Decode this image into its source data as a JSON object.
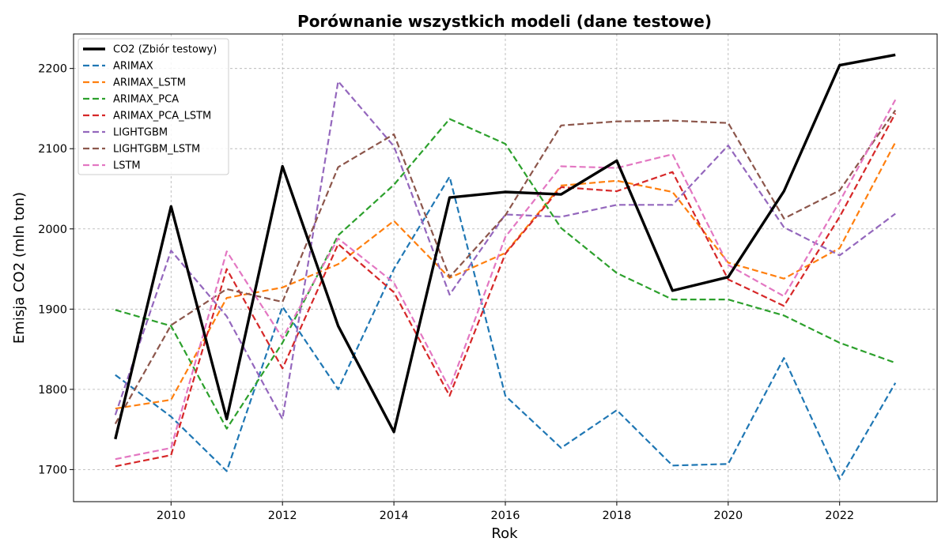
{
  "chart_data": {
    "type": "line",
    "title": "Porównanie wszystkich modeli (dane testowe)",
    "xlabel": "Rok",
    "ylabel": "Emisja CO2 (mln ton)",
    "xlim": [
      2008.25,
      2023.75
    ],
    "ylim": [
      1660,
      2243
    ],
    "xticks": [
      2010,
      2012,
      2014,
      2016,
      2018,
      2020,
      2022
    ],
    "yticks": [
      1700,
      1800,
      1900,
      2000,
      2100,
      2200
    ],
    "grid": true,
    "legend_position": "top-left",
    "x": [
      2009,
      2010,
      2011,
      2012,
      2013,
      2014,
      2015,
      2016,
      2017,
      2018,
      2019,
      2020,
      2021,
      2022,
      2023
    ],
    "series": [
      {
        "name": "CO2 (Zbiór testowy)",
        "color": "#000000",
        "style": "solid",
        "values": [
          1738,
          2028,
          1763,
          2078,
          1879,
          1747,
          2039,
          2046,
          2043,
          2085,
          1923,
          1940,
          2047,
          2204,
          2217
        ]
      },
      {
        "name": "ARIMAX",
        "color": "#1f77b4",
        "style": "dashed",
        "values": [
          1818,
          1766,
          1698,
          1903,
          1800,
          1950,
          2065,
          1792,
          1727,
          1774,
          1705,
          1707,
          1839,
          1688,
          1808
        ]
      },
      {
        "name": "ARIMAX_LSTM",
        "color": "#ff7f0e",
        "style": "dashed",
        "values": [
          1776,
          1787,
          1914,
          1927,
          1956,
          2010,
          1939,
          1970,
          2054,
          2060,
          2046,
          1958,
          1938,
          1976,
          2108
        ]
      },
      {
        "name": "ARIMAX_PCA",
        "color": "#2ca02c",
        "style": "dashed",
        "values": [
          1899,
          1879,
          1751,
          1858,
          1992,
          2055,
          2137,
          2106,
          2001,
          1945,
          1912,
          1912,
          1892,
          1858,
          1833
        ]
      },
      {
        "name": "ARIMAX_PCA_LSTM",
        "color": "#d62728",
        "style": "dashed",
        "values": [
          1704,
          1718,
          1950,
          1826,
          1981,
          1921,
          1792,
          1969,
          2052,
          2047,
          2071,
          1937,
          1904,
          2015,
          2144
        ]
      },
      {
        "name": "LIGHTGBM",
        "color": "#9467bd",
        "style": "dashed",
        "values": [
          1768,
          1973,
          1891,
          1763,
          2184,
          2103,
          1918,
          2018,
          2015,
          2030,
          2030,
          2104,
          2002,
          1967,
          2019
        ]
      },
      {
        "name": "LIGHTGBM_LSTM",
        "color": "#8c564b",
        "style": "dashed",
        "values": [
          1757,
          1880,
          1925,
          1909,
          2077,
          2118,
          1940,
          2017,
          2129,
          2134,
          2135,
          2132,
          2013,
          2048,
          2148
        ]
      },
      {
        "name": "LSTM",
        "color": "#e377c2",
        "style": "dashed",
        "values": [
          1713,
          1727,
          1972,
          1864,
          1988,
          1933,
          1801,
          1990,
          2078,
          2076,
          2093,
          1955,
          1916,
          2034,
          2161
        ]
      }
    ]
  }
}
